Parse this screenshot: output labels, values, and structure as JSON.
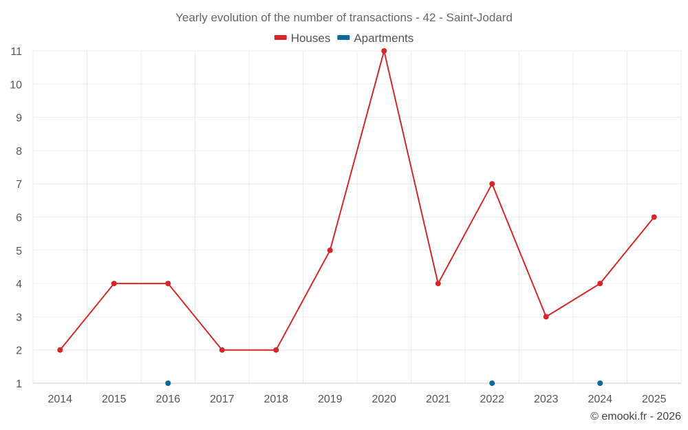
{
  "chart_data": {
    "type": "line",
    "title": "Yearly evolution of the number of transactions - 42 - Saint-Jodard",
    "categories": [
      "2014",
      "2015",
      "2016",
      "2017",
      "2018",
      "2019",
      "2020",
      "2021",
      "2022",
      "2023",
      "2024",
      "2025"
    ],
    "series": [
      {
        "name": "Houses",
        "color": "#d62728",
        "values": [
          2,
          4,
          4,
          2,
          2,
          5,
          11,
          4,
          7,
          3,
          4,
          6
        ]
      },
      {
        "name": "Apartments",
        "color": "#0b6aa2",
        "values": [
          null,
          null,
          1,
          null,
          null,
          null,
          null,
          null,
          1,
          null,
          1,
          null
        ]
      }
    ],
    "y_ticks": [
      1,
      2,
      3,
      4,
      5,
      6,
      7,
      8,
      9,
      10,
      11
    ],
    "ylim": [
      1,
      11
    ],
    "xlabel": "",
    "ylabel": "",
    "grid": true,
    "legend_position": "top-center"
  },
  "credit": "© emooki.fr - 2026"
}
